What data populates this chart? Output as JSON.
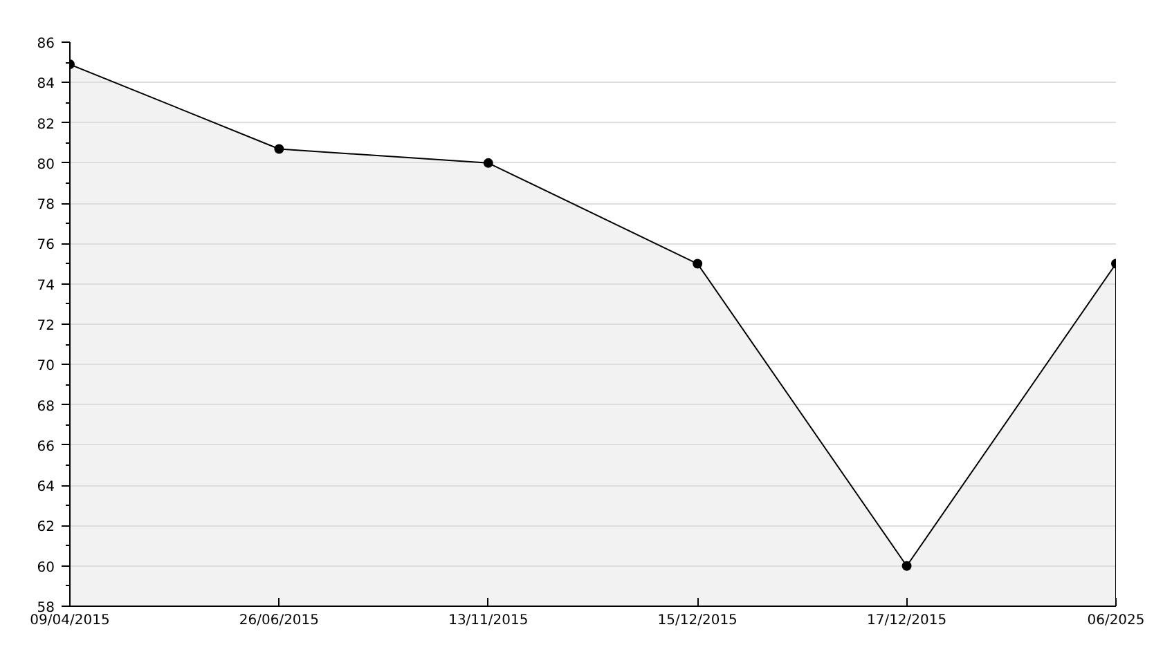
{
  "chart_data": {
    "type": "area",
    "categories": [
      "09/04/2015",
      "26/06/2015",
      "13/11/2015",
      "15/12/2015",
      "17/12/2015",
      "06/2025"
    ],
    "series": [
      {
        "color": "#000000",
        "values": [
          84.9,
          80.7,
          80.0,
          75.0,
          60.0,
          75.0
        ]
      }
    ],
    "ylim": [
      58,
      86
    ],
    "yticks": [
      58,
      60,
      62,
      64,
      66,
      68,
      70,
      72,
      74,
      76,
      78,
      80,
      82,
      84,
      86
    ],
    "grid": "y",
    "marker": "circle",
    "line_style": "solid"
  }
}
